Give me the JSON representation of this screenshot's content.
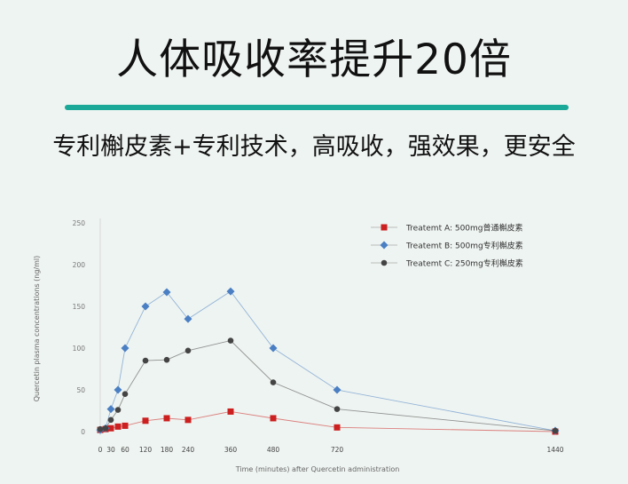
{
  "header": {
    "title": "人体吸收率提升20倍",
    "subtitle": "专利槲皮素+专利技术，高吸收，强效果，更安全",
    "divider_color": "#1aa898"
  },
  "chart_data": {
    "type": "line",
    "xlabel": "Time (minutes) after Quercetin administration",
    "ylabel": "Quercetin plasma concentrations (ng/ml)",
    "x_ticks": [
      0,
      30,
      60,
      120,
      180,
      240,
      360,
      480,
      720,
      1440
    ],
    "y_ticks": [
      0,
      50,
      100,
      150,
      200,
      250
    ],
    "ylim": [
      0,
      250
    ],
    "legend_position": "top-right",
    "grid": false,
    "series": [
      {
        "name": "Treatemt A: 500mg普通槲皮素",
        "color": "#cc1f1f",
        "marker": "square",
        "x": [
          0,
          15,
          30,
          45,
          60,
          120,
          180,
          240,
          360,
          480,
          720,
          1440
        ],
        "y": [
          2,
          3,
          4,
          6,
          7,
          13,
          16,
          14,
          24,
          16,
          5,
          0
        ]
      },
      {
        "name": "Treatemt B: 500mg专利槲皮素",
        "color": "#4a7fc4",
        "marker": "diamond",
        "x": [
          0,
          15,
          30,
          45,
          60,
          120,
          180,
          240,
          360,
          480,
          720,
          1440
        ],
        "y": [
          2,
          4,
          27,
          50,
          100,
          150,
          167,
          135,
          168,
          100,
          50,
          1
        ]
      },
      {
        "name": "Treatemt C: 250mg专利槲皮素",
        "color": "#444444",
        "marker": "circle",
        "x": [
          0,
          15,
          30,
          45,
          60,
          120,
          180,
          240,
          360,
          480,
          720,
          1440
        ],
        "y": [
          3,
          4,
          14,
          26,
          45,
          85,
          86,
          97,
          109,
          59,
          27,
          1
        ]
      }
    ]
  }
}
